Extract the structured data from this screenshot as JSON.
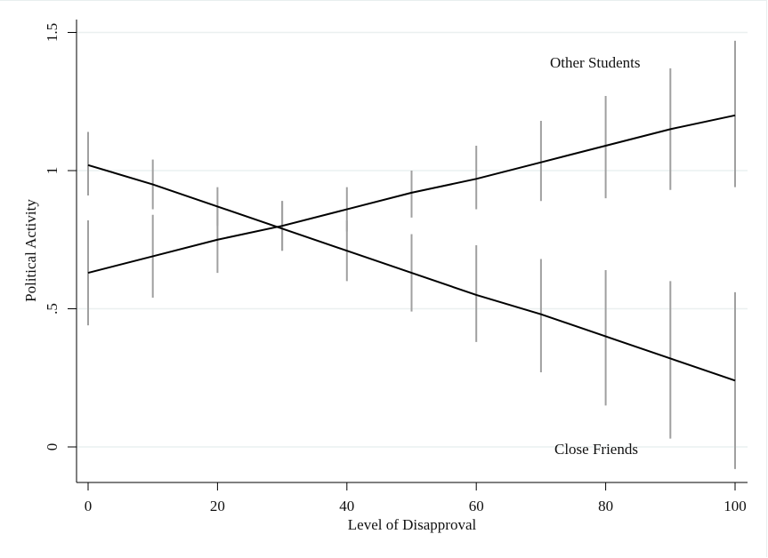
{
  "chart_data": {
    "type": "line",
    "title": "",
    "xlabel": "Level of Disapproval",
    "ylabel": "Political Activity",
    "xlim": [
      0,
      100
    ],
    "ylim": [
      -0.1,
      1.55
    ],
    "x_ticks": [
      0,
      20,
      40,
      60,
      80,
      100
    ],
    "x_tick_labels": [
      "0",
      "20",
      "40",
      "60",
      "80",
      "100"
    ],
    "y_ticks": [
      0,
      0.5,
      1,
      1.5
    ],
    "y_tick_labels": [
      "0",
      ".5",
      "1",
      "1.5"
    ],
    "grid": true,
    "legend": "none (inline series labels)",
    "x": [
      0,
      10,
      20,
      30,
      40,
      50,
      60,
      70,
      80,
      90,
      100
    ],
    "series": [
      {
        "name": "Other Students",
        "label_position": "upper right",
        "values": [
          0.63,
          0.69,
          0.75,
          0.8,
          0.86,
          0.92,
          0.97,
          1.03,
          1.09,
          1.15,
          1.2
        ],
        "ci_lower": [
          0.44,
          0.54,
          0.63,
          0.71,
          0.78,
          0.83,
          0.86,
          0.89,
          0.9,
          0.93,
          0.94
        ],
        "ci_upper": [
          0.82,
          0.84,
          0.87,
          0.89,
          0.94,
          1.0,
          1.09,
          1.18,
          1.27,
          1.37,
          1.47
        ]
      },
      {
        "name": "Close Friends",
        "label_position": "lower right",
        "values": [
          1.02,
          0.95,
          0.87,
          0.79,
          0.71,
          0.63,
          0.55,
          0.48,
          0.4,
          0.32,
          0.24
        ],
        "ci_lower": [
          0.91,
          0.86,
          0.8,
          0.71,
          0.6,
          0.49,
          0.38,
          0.27,
          0.15,
          0.03,
          -0.08
        ],
        "ci_upper": [
          1.14,
          1.04,
          0.94,
          0.89,
          0.82,
          0.77,
          0.73,
          0.68,
          0.64,
          0.6,
          0.56
        ]
      }
    ]
  },
  "labels": {
    "other_students": "Other Students",
    "close_friends": "Close Friends",
    "xlabel": "Level of Disapproval",
    "ylabel": "Political Activity"
  },
  "colors": {
    "line": "#000000",
    "ci": "#a0a0a0",
    "grid": "#eaf0f0",
    "axis": "#000000"
  }
}
